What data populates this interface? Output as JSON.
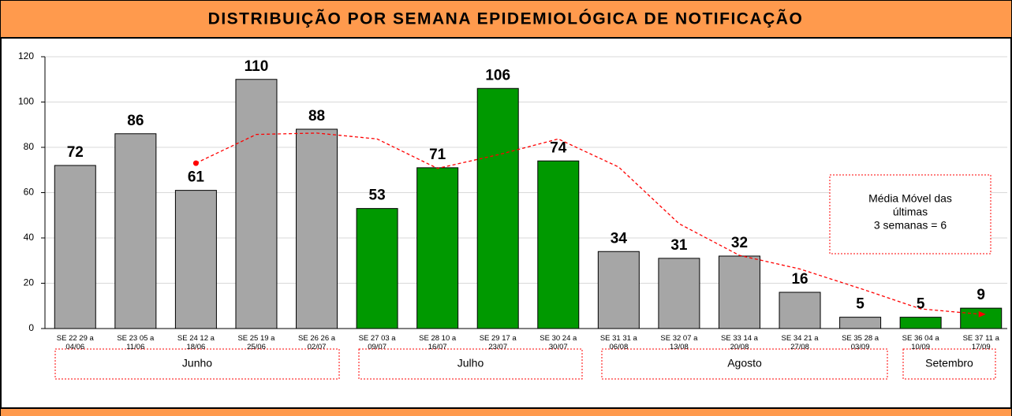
{
  "chart_data": {
    "type": "bar",
    "title": "DISTRIBUIÇÃO POR SEMANA EPIDEMIOLÓGICA DE NOTIFICAÇÃO",
    "categories": [
      "SE 22 29 a 04/06",
      "SE 23 05 a 11/06",
      "SE 24 12 a 18/06",
      "SE 25 19 a 25/06",
      "SE 26 26 a 02/07",
      "SE 27 03 a 09/07",
      "SE 28 10 a 16/07",
      "SE 29 17 a 23/07",
      "SE 30 24 a 30/07",
      "SE 31 31 a 06/08",
      "SE 32 07 a 13/08",
      "SE 33 14 a 20/08",
      "SE 34 21 a 27/08",
      "SE 35 28 a 03/09",
      "SE 36 04 a 10/09",
      "SE 37 11 a 17/09"
    ],
    "values": [
      72,
      86,
      61,
      110,
      88,
      53,
      71,
      106,
      74,
      34,
      31,
      32,
      16,
      5,
      5,
      9
    ],
    "colors": [
      "#a6a6a6",
      "#a6a6a6",
      "#a6a6a6",
      "#a6a6a6",
      "#a6a6a6",
      "#009900",
      "#009900",
      "#009900",
      "#009900",
      "#a6a6a6",
      "#a6a6a6",
      "#a6a6a6",
      "#a6a6a6",
      "#a6a6a6",
      "#009900",
      "#009900"
    ],
    "moving_average": {
      "color": "#ff0000",
      "values": [
        null,
        null,
        73,
        85.7,
        86.3,
        83.7,
        70.7,
        76.7,
        83.7,
        71.3,
        46.3,
        32.3,
        26.3,
        17.7,
        8.7,
        6.3
      ]
    },
    "annotation": [
      "Média Móvel das",
      "últimas",
      "3 semanas  = 6"
    ],
    "months": [
      "Junho",
      "Julho",
      "Agosto",
      "Setembro"
    ],
    "ylim": [
      0,
      120
    ],
    "yticks": [
      0,
      20,
      40,
      60,
      80,
      100,
      120
    ],
    "grid": true
  }
}
